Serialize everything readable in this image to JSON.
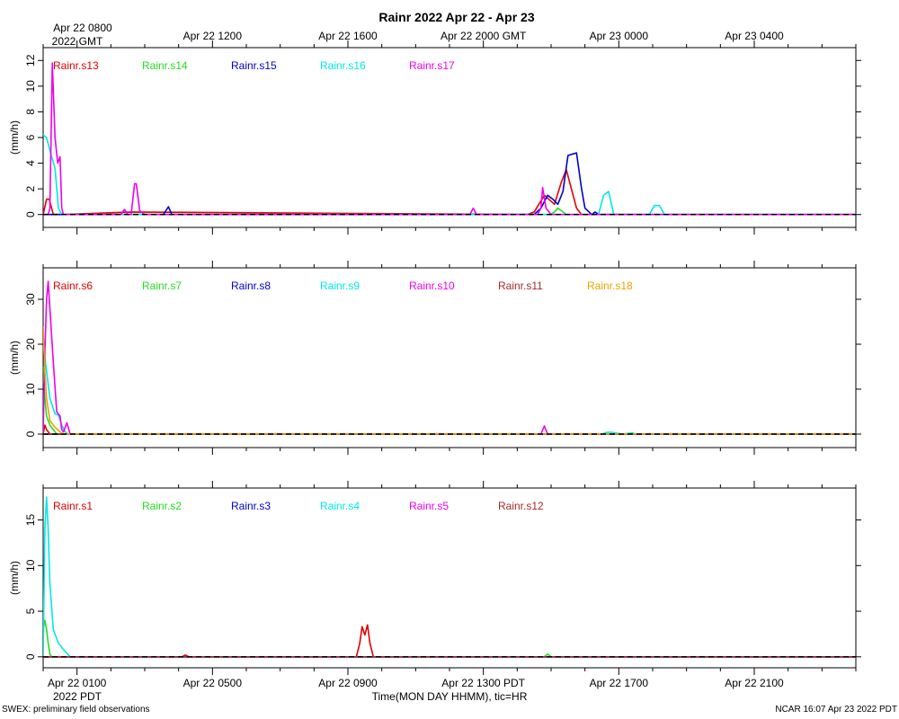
{
  "title": "Rainr 2022 Apr 22 - Apr 23",
  "top_axis": {
    "first_label_line1": "Apr 22 0800",
    "first_label_line2": "2022 GMT",
    "labels": [
      "Apr 22 0800",
      "Apr 22 1200",
      "Apr 22 1600",
      "Apr 22 2000 GMT",
      "Apr 23 0000",
      "Apr 23 0400"
    ]
  },
  "bottom_axis": {
    "labels": [
      "Apr 22 0100",
      "Apr 22 0500",
      "Apr 22 0900",
      "Apr 22 1300 PDT",
      "Apr 22 1700",
      "Apr 22 2100"
    ],
    "year_label": "2022 PDT",
    "xlabel": "Time(MON DAY HHMM), tic=HR"
  },
  "footer": {
    "left": "SWEX: preliminary field observations",
    "right": "NCAR 16:07 Apr 23 2022 PDT"
  },
  "colors": {
    "red": "#e00000",
    "green": "#22dd22",
    "blue": "#0000cc",
    "cyan": "#00e8e8",
    "magenta": "#ee00ee",
    "brown": "#a52a2a",
    "orange": "#f0a000"
  },
  "chart_data": [
    {
      "type": "line",
      "ylabel": "(mm/h)",
      "x_unit": "hours after Apr 22 0000 PDT",
      "xlim": [
        0,
        24
      ],
      "ylim": [
        -1,
        13
      ],
      "yticks": [
        0,
        2,
        4,
        6,
        8,
        10,
        12
      ],
      "series": [
        {
          "name": "Rainr.s13",
          "color": "red",
          "x": [
            0,
            0.1,
            0.18,
            0.3,
            0.45,
            0.6,
            2.6,
            14.3,
            14.5,
            14.8,
            15.1,
            15.3,
            15.45,
            15.6,
            15.75,
            15.9,
            16.3
          ],
          "y": [
            0,
            1.2,
            1.2,
            0,
            0,
            0,
            0.2,
            0,
            0.2,
            1.5,
            0.8,
            2.5,
            3.5,
            2.0,
            0.5,
            0,
            0
          ]
        },
        {
          "name": "Rainr.s14",
          "color": "green",
          "x": [
            0,
            15.0,
            15.1,
            15.2,
            15.3,
            15.45,
            24
          ],
          "y": [
            0,
            0,
            0.2,
            0.5,
            0.3,
            0,
            0
          ]
        },
        {
          "name": "Rainr.s15",
          "color": "blue",
          "x": [
            0,
            3.55,
            3.7,
            3.8,
            14.5,
            14.7,
            14.9,
            15.05,
            15.2,
            15.35,
            15.5,
            15.75,
            15.9,
            16.0,
            16.2,
            16.3,
            16.4,
            24
          ],
          "y": [
            0,
            0,
            0.6,
            0,
            0,
            0.5,
            1.5,
            1.2,
            0.8,
            1.8,
            4.6,
            4.8,
            2.0,
            0.5,
            0,
            0.2,
            0,
            0
          ]
        },
        {
          "name": "Rainr.s16",
          "color": "cyan",
          "x": [
            0,
            0.1,
            0.25,
            0.35,
            0.45,
            0.55,
            16.4,
            16.55,
            16.7,
            16.85,
            17.9,
            18.05,
            18.2,
            18.35,
            24
          ],
          "y": [
            6.2,
            6.0,
            4.5,
            3.6,
            0.5,
            0,
            0,
            1.5,
            1.8,
            0,
            0,
            0.7,
            0.7,
            0,
            0
          ]
        },
        {
          "name": "Rainr.s17",
          "color": "magenta",
          "x": [
            0,
            0.1,
            0.15,
            0.2,
            0.27,
            0.35,
            0.43,
            0.5,
            0.55,
            0.6,
            0.7,
            2.3,
            2.4,
            2.5,
            2.6,
            2.7,
            2.75,
            2.85,
            3.0,
            12.6,
            12.7,
            12.8,
            14.6,
            14.7,
            14.75,
            14.85,
            15.0,
            24
          ],
          "y": [
            0,
            0,
            0,
            0.5,
            11.8,
            6.0,
            4.0,
            4.5,
            0.5,
            0,
            0,
            0,
            0.4,
            0,
            0,
            2.4,
            2.4,
            0.3,
            0,
            0,
            0.5,
            0,
            0,
            0.5,
            2.1,
            0.5,
            0,
            0
          ]
        }
      ]
    },
    {
      "type": "line",
      "ylabel": "(mm/h)",
      "x_unit": "hours after Apr 22 0000 PDT",
      "xlim": [
        0,
        24
      ],
      "ylim": [
        -3,
        37
      ],
      "yticks": [
        0,
        10,
        20,
        30
      ],
      "series": [
        {
          "name": "Rainr.s6",
          "color": "red",
          "x": [
            0,
            0.05,
            0.1,
            0.2,
            0.3,
            24
          ],
          "y": [
            0,
            2,
            1,
            0,
            0,
            0
          ]
        },
        {
          "name": "Rainr.s7",
          "color": "green",
          "x": [
            0,
            0.05,
            0.1,
            0.2,
            0.3,
            0.4,
            24
          ],
          "y": [
            15,
            8,
            4,
            2,
            1,
            0,
            0
          ]
        },
        {
          "name": "Rainr.s8",
          "color": "blue",
          "x": [
            0,
            24
          ],
          "y": [
            0,
            0
          ]
        },
        {
          "name": "Rainr.s9",
          "color": "cyan",
          "x": [
            0,
            0.1,
            0.2,
            0.35,
            0.45,
            0.55,
            0.65,
            0.75,
            16.5,
            16.65,
            16.8,
            17.1,
            17.4,
            17.5,
            24
          ],
          "y": [
            20,
            14,
            8,
            4.5,
            4.2,
            2,
            0.5,
            0,
            0,
            0.4,
            0.4,
            0,
            0.3,
            0,
            0
          ]
        },
        {
          "name": "Rainr.s10",
          "color": "magenta",
          "x": [
            0,
            0.05,
            0.1,
            0.15,
            0.2,
            0.3,
            0.4,
            0.5,
            0.55,
            0.6,
            0.7,
            0.8,
            14.7,
            14.8,
            14.9,
            24
          ],
          "y": [
            0,
            18,
            30,
            34,
            28,
            16,
            5,
            4,
            1,
            0.5,
            2.5,
            0,
            0,
            1.8,
            0,
            0
          ]
        },
        {
          "name": "Rainr.s11",
          "color": "brown",
          "x": [
            0,
            24
          ],
          "y": [
            0,
            0
          ]
        },
        {
          "name": "Rainr.s18",
          "color": "orange",
          "x": [
            0,
            0.05,
            0.1,
            0.2,
            0.35,
            0.5,
            0.6,
            24
          ],
          "y": [
            24,
            14,
            8,
            3,
            1.5,
            0.5,
            0,
            0
          ]
        }
      ]
    },
    {
      "type": "line",
      "ylabel": "(mm/h)",
      "x_unit": "hours after Apr 22 0000 PDT",
      "xlim": [
        0,
        24
      ],
      "ylim": [
        -1.2,
        18.5
      ],
      "yticks": [
        0,
        5,
        10,
        15
      ],
      "series": [
        {
          "name": "Rainr.s1",
          "color": "red",
          "x": [
            0,
            4.1,
            4.2,
            4.3,
            9.25,
            9.35,
            9.42,
            9.5,
            9.58,
            9.65,
            9.75,
            24
          ],
          "y": [
            0,
            0,
            0.2,
            0,
            0,
            1.5,
            3.3,
            2.4,
            3.5,
            1.5,
            0,
            0
          ]
        },
        {
          "name": "Rainr.s2",
          "color": "green",
          "x": [
            0,
            0.05,
            0.1,
            0.15,
            0.2,
            0.25,
            14.8,
            14.9,
            15.0,
            24
          ],
          "y": [
            3.0,
            4.0,
            3.0,
            1.5,
            0.3,
            0,
            0,
            0.3,
            0,
            0
          ]
        },
        {
          "name": "Rainr.s3",
          "color": "blue",
          "x": [
            0,
            24
          ],
          "y": [
            0,
            0
          ]
        },
        {
          "name": "Rainr.s4",
          "color": "cyan",
          "x": [
            0,
            0.05,
            0.1,
            0.15,
            0.2,
            0.3,
            0.45,
            0.6,
            0.8,
            24
          ],
          "y": [
            0,
            14,
            17.5,
            14,
            8,
            3,
            1.5,
            0.8,
            0,
            0
          ]
        },
        {
          "name": "Rainr.s5",
          "color": "magenta",
          "x": [
            0,
            24
          ],
          "y": [
            0,
            0
          ]
        },
        {
          "name": "Rainr.s12",
          "color": "brown",
          "x": [
            0,
            24
          ],
          "y": [
            0,
            0
          ]
        }
      ]
    }
  ]
}
